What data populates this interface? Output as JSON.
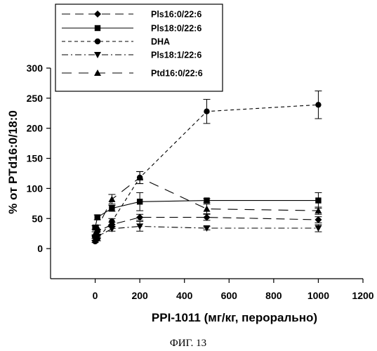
{
  "chart_data": {
    "type": "line",
    "xlabel": "PPI-1011 (мг/кг, перорально)",
    "ylabel": "% от PTd16:0/18:0",
    "caption": "ФИГ. 13",
    "xlim": [
      -200,
      1200
    ],
    "ylim": [
      -50,
      300
    ],
    "xticks": [
      0,
      200,
      400,
      600,
      800,
      1000,
      1200
    ],
    "yticks": [
      0,
      50,
      100,
      150,
      200,
      250,
      300
    ],
    "grid": false,
    "legend_position": "top-left",
    "series": [
      {
        "name": "Pls16:0/22:6",
        "marker": "diamond",
        "line": "long-dash",
        "x": [
          0,
          10,
          75,
          200,
          500,
          1000
        ],
        "y": [
          20,
          28,
          40,
          52,
          52,
          48
        ],
        "err": [
          3,
          4,
          4,
          5,
          5,
          5
        ]
      },
      {
        "name": "Pls18:0/22:6",
        "marker": "square",
        "line": "solid",
        "x": [
          0,
          10,
          75,
          200,
          500,
          1000
        ],
        "y": [
          35,
          52,
          67,
          78,
          80,
          80
        ],
        "err": [
          3,
          4,
          5,
          15,
          3,
          13
        ]
      },
      {
        "name": "DHA",
        "marker": "circle",
        "line": "short-dash",
        "x": [
          0,
          10,
          75,
          200,
          500,
          1000
        ],
        "y": [
          12,
          16,
          45,
          118,
          228,
          239
        ],
        "err": [
          2,
          3,
          5,
          10,
          20,
          23
        ]
      },
      {
        "name": "Pls18:1/22:6",
        "marker": "triangle-down",
        "line": "dash-dot",
        "x": [
          0,
          10,
          75,
          200,
          500,
          1000
        ],
        "y": [
          15,
          20,
          33,
          37,
          34,
          34
        ],
        "err": [
          2,
          3,
          4,
          8,
          3,
          6
        ]
      },
      {
        "name": "Ptd16:0/22:6",
        "marker": "triangle-up",
        "line": "long-dash-gap",
        "x": [
          0,
          10,
          75,
          200,
          500,
          1000
        ],
        "y": [
          25,
          35,
          82,
          118,
          66,
          63
        ],
        "err": [
          3,
          4,
          8,
          10,
          8,
          6
        ]
      }
    ]
  }
}
